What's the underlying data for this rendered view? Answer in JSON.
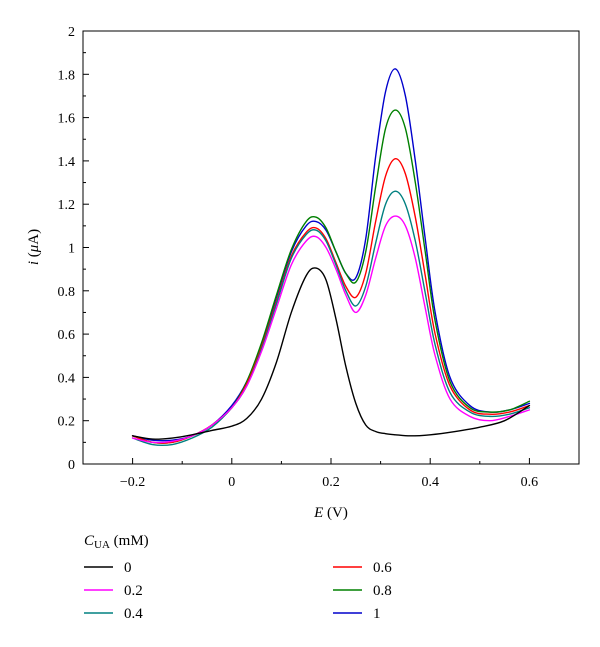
{
  "chart_data": {
    "type": "line",
    "xlabel": {
      "italic": "E",
      "rest": " (V)"
    },
    "ylabel": {
      "italic": "i",
      "open": " (",
      "mu": "μ",
      "rest": "A)"
    },
    "xlim": [
      -0.3,
      0.7
    ],
    "ylim": [
      0,
      2
    ],
    "xticks": [
      -0.2,
      0,
      0.2,
      0.4,
      0.6
    ],
    "xtick_labels": [
      "−0.2",
      "0",
      "0.2",
      "0.4",
      "0.6"
    ],
    "yticks": [
      0,
      0.2,
      0.4,
      0.6,
      0.8,
      1,
      1.2,
      1.4,
      1.6,
      1.8,
      2
    ],
    "ytick_labels": [
      "0",
      "0.2",
      "0.4",
      "0.6",
      "0.8",
      "1",
      "1.2",
      "1.4",
      "1.6",
      "1.8",
      "2"
    ],
    "grid": false,
    "legend": {
      "title_main": "C",
      "title_sub": "UA",
      "title_unit": " (mM)",
      "placement": "bottom"
    },
    "series": [
      {
        "name": "0",
        "color": "#000000",
        "x": [
          -0.2,
          -0.16,
          -0.12,
          -0.08,
          -0.04,
          0,
          0.03,
          0.06,
          0.09,
          0.12,
          0.15,
          0.17,
          0.19,
          0.21,
          0.23,
          0.25,
          0.27,
          0.29,
          0.31,
          0.33,
          0.36,
          0.4,
          0.45,
          0.5,
          0.55,
          0.6
        ],
        "y": [
          0.13,
          0.115,
          0.12,
          0.135,
          0.155,
          0.175,
          0.21,
          0.3,
          0.47,
          0.7,
          0.87,
          0.905,
          0.85,
          0.67,
          0.45,
          0.28,
          0.18,
          0.15,
          0.14,
          0.135,
          0.13,
          0.135,
          0.15,
          0.17,
          0.2,
          0.27
        ]
      },
      {
        "name": "0.2",
        "color": "#ff00ff",
        "x": [
          -0.2,
          -0.16,
          -0.12,
          -0.08,
          -0.04,
          0,
          0.03,
          0.06,
          0.09,
          0.12,
          0.15,
          0.17,
          0.19,
          0.21,
          0.23,
          0.25,
          0.27,
          0.29,
          0.31,
          0.33,
          0.35,
          0.37,
          0.39,
          0.41,
          0.44,
          0.48,
          0.52,
          0.56,
          0.6
        ],
        "y": [
          0.12,
          0.1,
          0.105,
          0.13,
          0.18,
          0.26,
          0.36,
          0.52,
          0.72,
          0.92,
          1.03,
          1.05,
          1.0,
          0.9,
          0.78,
          0.7,
          0.78,
          0.95,
          1.1,
          1.145,
          1.1,
          0.95,
          0.72,
          0.5,
          0.3,
          0.22,
          0.2,
          0.22,
          0.25
        ]
      },
      {
        "name": "0.4",
        "color": "#008080",
        "x": [
          -0.2,
          -0.16,
          -0.12,
          -0.08,
          -0.04,
          0,
          0.03,
          0.06,
          0.09,
          0.12,
          0.15,
          0.17,
          0.19,
          0.21,
          0.23,
          0.25,
          0.27,
          0.29,
          0.31,
          0.33,
          0.35,
          0.37,
          0.39,
          0.41,
          0.44,
          0.48,
          0.52,
          0.56,
          0.6
        ],
        "y": [
          0.12,
          0.09,
          0.09,
          0.12,
          0.17,
          0.26,
          0.36,
          0.53,
          0.74,
          0.95,
          1.06,
          1.08,
          1.03,
          0.92,
          0.8,
          0.73,
          0.82,
          1.02,
          1.2,
          1.26,
          1.2,
          1.03,
          0.79,
          0.55,
          0.33,
          0.24,
          0.22,
          0.23,
          0.26
        ]
      },
      {
        "name": "0.6",
        "color": "#ff0000",
        "x": [
          -0.2,
          -0.16,
          -0.12,
          -0.08,
          -0.04,
          0,
          0.03,
          0.06,
          0.09,
          0.12,
          0.15,
          0.17,
          0.19,
          0.21,
          0.23,
          0.25,
          0.27,
          0.29,
          0.31,
          0.33,
          0.35,
          0.37,
          0.39,
          0.41,
          0.44,
          0.48,
          0.52,
          0.56,
          0.6
        ],
        "y": [
          0.13,
          0.1,
          0.1,
          0.13,
          0.18,
          0.26,
          0.37,
          0.54,
          0.75,
          0.96,
          1.07,
          1.09,
          1.04,
          0.93,
          0.82,
          0.77,
          0.88,
          1.12,
          1.33,
          1.41,
          1.34,
          1.14,
          0.87,
          0.6,
          0.36,
          0.25,
          0.23,
          0.24,
          0.27
        ]
      },
      {
        "name": "0.8",
        "color": "#008000",
        "x": [
          -0.2,
          -0.16,
          -0.12,
          -0.08,
          -0.04,
          0,
          0.03,
          0.06,
          0.09,
          0.12,
          0.15,
          0.17,
          0.19,
          0.21,
          0.23,
          0.25,
          0.27,
          0.29,
          0.31,
          0.33,
          0.35,
          0.37,
          0.39,
          0.41,
          0.44,
          0.48,
          0.52,
          0.56,
          0.6
        ],
        "y": [
          0.13,
          0.1,
          0.1,
          0.13,
          0.18,
          0.26,
          0.38,
          0.56,
          0.78,
          0.99,
          1.12,
          1.14,
          1.09,
          0.98,
          0.88,
          0.84,
          0.98,
          1.28,
          1.55,
          1.635,
          1.55,
          1.3,
          0.98,
          0.66,
          0.38,
          0.26,
          0.24,
          0.25,
          0.29
        ]
      },
      {
        "name": "1",
        "color": "#0000cc",
        "x": [
          -0.2,
          -0.16,
          -0.12,
          -0.08,
          -0.04,
          0,
          0.03,
          0.06,
          0.09,
          0.12,
          0.15,
          0.17,
          0.19,
          0.21,
          0.23,
          0.25,
          0.27,
          0.29,
          0.31,
          0.33,
          0.35,
          0.37,
          0.39,
          0.41,
          0.44,
          0.48,
          0.52,
          0.56,
          0.6
        ],
        "y": [
          0.13,
          0.11,
          0.11,
          0.13,
          0.18,
          0.27,
          0.38,
          0.55,
          0.77,
          0.98,
          1.1,
          1.12,
          1.08,
          0.98,
          0.88,
          0.86,
          1.04,
          1.42,
          1.72,
          1.825,
          1.7,
          1.4,
          1.04,
          0.7,
          0.4,
          0.27,
          0.24,
          0.25,
          0.28
        ]
      }
    ]
  }
}
